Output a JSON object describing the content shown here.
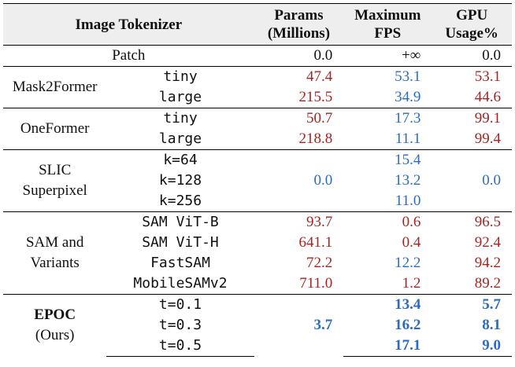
{
  "header": {
    "tokenizer": "Image Tokenizer",
    "params": [
      "Params",
      "(Millions)"
    ],
    "fps": [
      "Maximum",
      "FPS"
    ],
    "gpu": [
      "GPU",
      "Usage%"
    ]
  },
  "colors": {
    "red": "#a52422",
    "blue": "#2a6cc4",
    "header_bg": "#eeeeee"
  },
  "patch": {
    "label": "Patch",
    "params": "0.0",
    "fps": "+∞",
    "gpu": "0.0"
  },
  "mask2former": {
    "name": "Mask2Former",
    "rows": [
      {
        "variant": "tiny",
        "params": "47.4",
        "fps": "53.1",
        "gpu": "53.1"
      },
      {
        "variant": "large",
        "params": "215.5",
        "fps": "34.9",
        "gpu": "44.6"
      }
    ]
  },
  "oneformer": {
    "name": "OneFormer",
    "rows": [
      {
        "variant": "tiny",
        "params": "50.7",
        "fps": "17.3",
        "gpu": "99.1"
      },
      {
        "variant": "large",
        "params": "218.8",
        "fps": "11.1",
        "gpu": "99.4"
      }
    ]
  },
  "slic": {
    "name": [
      "SLIC",
      "Superpixel"
    ],
    "params": "0.0",
    "gpu": "0.0",
    "rows": [
      {
        "variant": "k=64",
        "fps": "15.4"
      },
      {
        "variant": "k=128",
        "fps": "13.2"
      },
      {
        "variant": "k=256",
        "fps": "11.0"
      }
    ]
  },
  "sam": {
    "name": [
      "SAM and",
      "Variants"
    ],
    "rows": [
      {
        "variant": "SAM ViT-B",
        "params": "93.7",
        "fps": "0.6",
        "gpu": "96.5"
      },
      {
        "variant": "SAM ViT-H",
        "params": "641.1",
        "fps": "0.4",
        "gpu": "92.4"
      },
      {
        "variant": "FastSAM",
        "params": "72.2",
        "fps": "12.2",
        "gpu": "94.2"
      },
      {
        "variant": "MobileSAMv2",
        "params": "711.0",
        "fps": "1.2",
        "gpu": "89.2"
      }
    ]
  },
  "epoc": {
    "name": [
      "EPOC",
      "(Ours)"
    ],
    "params": "3.7",
    "rows": [
      {
        "variant": "t=0.1",
        "fps": "13.4",
        "gpu": "5.7"
      },
      {
        "variant": "t=0.3",
        "fps": "16.2",
        "gpu": "8.1"
      },
      {
        "variant": "t=0.5",
        "fps": "17.1",
        "gpu": "9.0"
      }
    ]
  }
}
